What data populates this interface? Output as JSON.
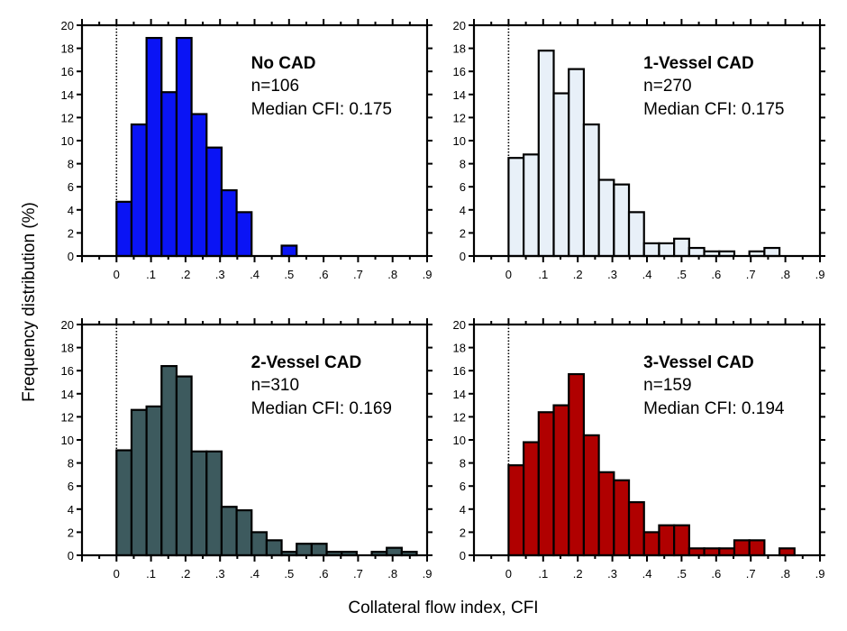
{
  "chart_data": {
    "type": "bar",
    "figure": {
      "ylabel": "Frequency distribution (%)",
      "xlabel": "Collateral flow index, CFI",
      "layout": "2x2 grid"
    },
    "panels": [
      {
        "id": "no-cad",
        "title": "No CAD",
        "n_label": "n=106",
        "median_label": "Median CFI: 0.175",
        "color": "#0a14f5",
        "bin_start": 0,
        "bin_width": 0.0435,
        "values": [
          4.7,
          11.4,
          18.9,
          14.2,
          18.9,
          12.3,
          9.4,
          5.7,
          3.8,
          0,
          0,
          0.9
        ]
      },
      {
        "id": "1-vessel-cad",
        "title": "1-Vessel CAD",
        "n_label": "n=270",
        "median_label": "Median CFI: 0.175",
        "color": "#e8f0f8",
        "bin_start": 0,
        "bin_width": 0.0435,
        "values": [
          8.5,
          8.8,
          17.8,
          14.1,
          16.2,
          11.4,
          6.6,
          6.2,
          3.8,
          1.1,
          1.1,
          1.5,
          0.7,
          0.4,
          0.4,
          0,
          0.4,
          0.7
        ]
      },
      {
        "id": "2-vessel-cad",
        "title": "2-Vessel CAD",
        "n_label": "n=310",
        "median_label": "Median CFI: 0.169",
        "color": "#3d5a5e",
        "bin_start": 0,
        "bin_width": 0.0435,
        "values": [
          9.1,
          12.6,
          12.9,
          16.4,
          15.5,
          9.0,
          9.0,
          4.2,
          3.9,
          2.0,
          1.3,
          0.3,
          1.0,
          1.0,
          0.3,
          0.3,
          0,
          0.3,
          0.65,
          0.3
        ]
      },
      {
        "id": "3-vessel-cad",
        "title": "3-Vessel CAD",
        "n_label": "n=159",
        "median_label": "Median CFI: 0.194",
        "color": "#b00000",
        "bin_start": 0,
        "bin_width": 0.0435,
        "values": [
          7.8,
          9.8,
          12.4,
          13.0,
          15.7,
          10.4,
          7.2,
          6.5,
          4.6,
          2.0,
          2.6,
          2.6,
          0.6,
          0.6,
          0.6,
          1.3,
          1.3,
          0,
          0.6
        ]
      }
    ],
    "xlim": [
      -0.1,
      0.9
    ],
    "ylim": [
      0,
      20
    ],
    "xticks": [
      0,
      0.1,
      0.2,
      0.3,
      0.4,
      0.5,
      0.6,
      0.7,
      0.8,
      0.9
    ],
    "xtick_labels": [
      "0",
      ".1",
      ".2",
      ".3",
      ".4",
      ".5",
      ".6",
      ".7",
      ".8",
      ".9"
    ],
    "yticks": [
      0,
      2,
      4,
      6,
      8,
      10,
      12,
      14,
      16,
      18,
      20
    ],
    "ytick_labels": [
      "0",
      "2",
      "4",
      "6",
      "8",
      "10",
      "12",
      "14",
      "16",
      "18",
      "20"
    ],
    "reference_line": {
      "x": 0,
      "style": "dotted"
    },
    "grid": false,
    "legend": "none (in-panel annotations top-right)"
  }
}
